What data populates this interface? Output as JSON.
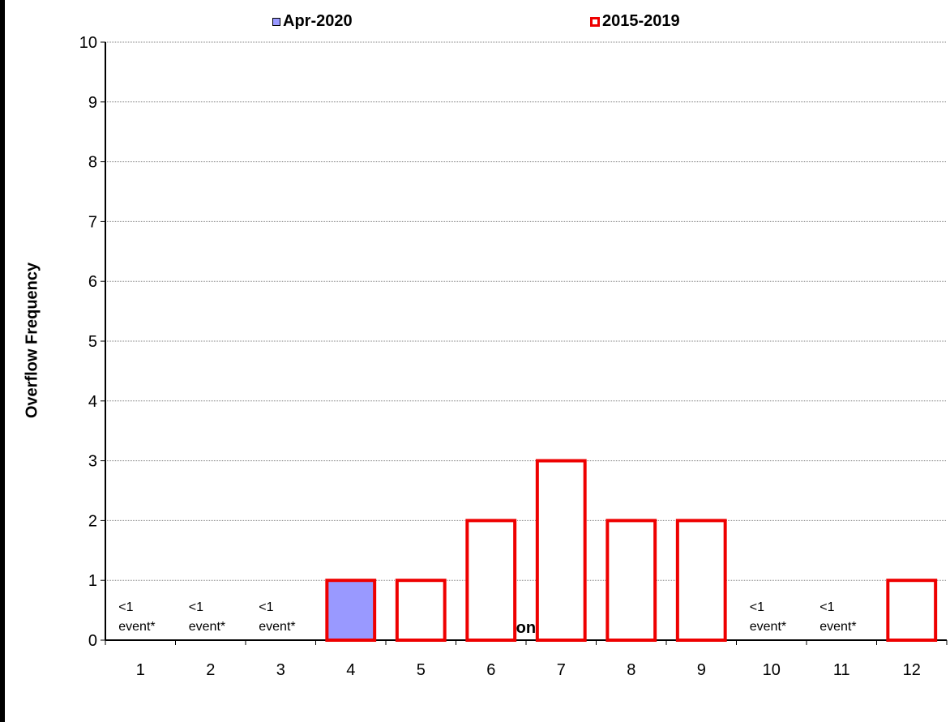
{
  "chart_data": {
    "type": "bar",
    "title": "",
    "xlabel": "Month",
    "ylabel": "Overflow Frequency",
    "categories": [
      "1",
      "2",
      "3",
      "4",
      "5",
      "6",
      "7",
      "8",
      "9",
      "10",
      "11",
      "12"
    ],
    "ylim": [
      0,
      10
    ],
    "yticks": [
      "0",
      "1",
      "2",
      "3",
      "4",
      "5",
      "6",
      "7",
      "8",
      "9",
      "10"
    ],
    "grid": true,
    "legend_position": "top",
    "series": [
      {
        "name": "Apr-2020",
        "color": "#9999ff",
        "values": [
          null,
          null,
          null,
          1,
          null,
          null,
          null,
          null,
          null,
          null,
          null,
          null
        ]
      },
      {
        "name": "2015-2019",
        "color": "#ee0000",
        "values": [
          0,
          0,
          0,
          null,
          1,
          2,
          3,
          2,
          2,
          0,
          0,
          1
        ]
      }
    ],
    "annotations": [
      {
        "category": "1",
        "line1": "<1",
        "line2": "event*"
      },
      {
        "category": "2",
        "line1": "<1",
        "line2": "event*"
      },
      {
        "category": "3",
        "line1": "<1",
        "line2": "event*"
      },
      {
        "category": "10",
        "line1": "<1",
        "line2": "event*"
      },
      {
        "category": "11",
        "line1": "<1",
        "line2": "event*"
      }
    ]
  }
}
